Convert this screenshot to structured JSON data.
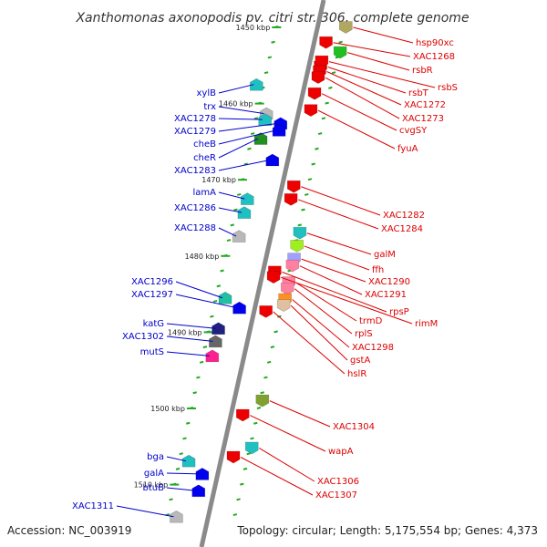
{
  "title": "Xanthomonas axonopodis pv. citri str. 306, complete genome",
  "footer": {
    "accession": "Accession: NC_003919",
    "summary": "Topology: circular; Length: 5,175,554 bp; Genes: 4,373"
  },
  "scale": [
    {
      "label": "1450 kbp",
      "kb": 1450
    },
    {
      "label": "1460 kbp",
      "kb": 1460
    },
    {
      "label": "1470 kbp",
      "kb": 1470
    },
    {
      "label": "1480 kbp",
      "kb": 1480
    },
    {
      "label": "1490 kbp",
      "kb": 1490
    },
    {
      "label": "1500 kbp",
      "kb": 1500
    },
    {
      "label": "1510 kbp",
      "kb": 1510
    }
  ],
  "genes_left": [
    {
      "name": "xylB",
      "kb": 1457.5,
      "ring": 2,
      "color": "#20c0c0",
      "dir": "forward"
    },
    {
      "name": "trx",
      "kb": 1461.3,
      "ring": 1,
      "color": "#b8b8b8",
      "dir": "forward"
    },
    {
      "name": "XAC1278",
      "kb": 1462.1,
      "ring": 1,
      "color": "#20c0c0",
      "dir": "forward"
    },
    {
      "name": "XAC1279",
      "kb": 1462.6,
      "ring": 0,
      "color": "#0000ee",
      "dir": "forward"
    },
    {
      "name": "cheB",
      "kb": 1463.5,
      "ring": 0,
      "color": "#0000ee",
      "dir": "forward"
    },
    {
      "name": "cheR",
      "kb": 1464.6,
      "ring": 1,
      "color": "#209020",
      "dir": "forward"
    },
    {
      "name": "XAC1283",
      "kb": 1467.4,
      "ring": 0,
      "color": "#0000ee",
      "dir": "forward"
    },
    {
      "name": "lamA",
      "kb": 1472.5,
      "ring": 1,
      "color": "#20c0c0",
      "dir": "forward"
    },
    {
      "name": "XAC1286",
      "kb": 1474.3,
      "ring": 1,
      "color": "#20c0c0",
      "dir": "forward"
    },
    {
      "name": "XAC1288",
      "kb": 1477.4,
      "ring": 1,
      "color": "#b8b8b8",
      "dir": "forward"
    },
    {
      "name": "XAC1296",
      "kb": 1485.5,
      "ring": 1,
      "color": "#20c0a0",
      "dir": "forward"
    },
    {
      "name": "XAC1297",
      "kb": 1486.8,
      "ring": 0,
      "color": "#0000ee",
      "dir": "forward"
    },
    {
      "name": "katG",
      "kb": 1489.5,
      "ring": 1,
      "color": "#202080",
      "dir": "forward"
    },
    {
      "name": "XAC1302",
      "kb": 1491.2,
      "ring": 1,
      "color": "#666666",
      "dir": "forward"
    },
    {
      "name": "mutS",
      "kb": 1493.1,
      "ring": 1,
      "color": "#ff2090",
      "dir": "forward"
    },
    {
      "name": "bga",
      "kb": 1506.9,
      "ring": 1,
      "color": "#20c0c0",
      "dir": "forward"
    },
    {
      "name": "galA",
      "kb": 1508.6,
      "ring": 0,
      "color": "#0000ee",
      "dir": "forward"
    },
    {
      "name": "btuB",
      "kb": 1510.8,
      "ring": 0,
      "color": "#0000ee",
      "dir": "forward"
    },
    {
      "name": "XAC1311",
      "kb": 1514.2,
      "ring": 1,
      "color": "#b8b8b8",
      "dir": "forward"
    }
  ],
  "genes_right": [
    {
      "name": "hsp90xc",
      "kb": 1450.0,
      "ring": 1,
      "color": "#b0a860",
      "dir": "reverse"
    },
    {
      "name": "XAC1268",
      "kb": 1452.0,
      "ring": 0,
      "color": "#ee0000",
      "dir": "reverse"
    },
    {
      "name": "rsbR",
      "kb": 1453.3,
      "ring": 1,
      "color": "#20c020",
      "dir": "reverse"
    },
    {
      "name": "rsbT",
      "kb": 1455.2,
      "ring": 0,
      "color": "#ee0000",
      "dir": "reverse"
    },
    {
      "name": "rsbS",
      "kb": 1454.5,
      "ring": 0,
      "color": "#ee0000",
      "dir": "reverse"
    },
    {
      "name": "XAC1272",
      "kb": 1455.8,
      "ring": 0,
      "color": "#ee0000",
      "dir": "reverse"
    },
    {
      "name": "XAC1273",
      "kb": 1456.6,
      "ring": 0,
      "color": "#ee0000",
      "dir": "reverse"
    },
    {
      "name": "cvgSY",
      "kb": 1458.7,
      "ring": 0,
      "color": "#ee0000",
      "dir": "reverse"
    },
    {
      "name": "fyuA",
      "kb": 1460.9,
      "ring": 0,
      "color": "#ee0000",
      "dir": "reverse"
    },
    {
      "name": "XAC1282",
      "kb": 1470.9,
      "ring": 0,
      "color": "#ee0000",
      "dir": "reverse"
    },
    {
      "name": "XAC1284",
      "kb": 1472.6,
      "ring": 0,
      "color": "#ee0000",
      "dir": "reverse"
    },
    {
      "name": "galM",
      "kb": 1477.0,
      "ring": 1,
      "color": "#20c0c0",
      "dir": "reverse"
    },
    {
      "name": "ffh",
      "kb": 1478.7,
      "ring": 1,
      "color": "#a0ee20",
      "dir": "reverse"
    },
    {
      "name": "XAC1290",
      "kb": 1480.4,
      "ring": 1,
      "color": "#a0a0ff",
      "dir": "reverse"
    },
    {
      "name": "XAC1291",
      "kb": 1481.3,
      "ring": 1,
      "color": "#ff80a0",
      "dir": "reverse"
    },
    {
      "name": "rpsP",
      "kb": 1482.1,
      "ring": 0,
      "color": "#ee0000",
      "dir": "reverse"
    },
    {
      "name": "rimM",
      "kb": 1482.8,
      "ring": 0,
      "color": "#ee0000",
      "dir": "reverse"
    },
    {
      "name": "trmD",
      "kb": 1483.5,
      "ring": 1,
      "color": "#ff80a0",
      "dir": "reverse"
    },
    {
      "name": "rplS",
      "kb": 1484.3,
      "ring": 1,
      "color": "#ff80a0",
      "dir": "reverse"
    },
    {
      "name": "XAC1298",
      "kb": 1485.7,
      "ring": 1,
      "color": "#ff9020",
      "dir": "reverse"
    },
    {
      "name": "gstA",
      "kb": 1486.5,
      "ring": 1,
      "color": "#e0c0a0",
      "dir": "reverse"
    },
    {
      "name": "hslR",
      "kb": 1487.3,
      "ring": 0,
      "color": "#ee0000",
      "dir": "reverse"
    },
    {
      "name": "XAC1304",
      "kb": 1499.0,
      "ring": 1,
      "color": "#80a030",
      "dir": "reverse"
    },
    {
      "name": "wapA",
      "kb": 1500.9,
      "ring": 0,
      "color": "#ee0000",
      "dir": "reverse"
    },
    {
      "name": "XAC1306",
      "kb": 1505.2,
      "ring": 1,
      "color": "#20c0c0",
      "dir": "reverse"
    },
    {
      "name": "XAC1307",
      "kb": 1506.4,
      "ring": 0,
      "color": "#ee0000",
      "dir": "reverse"
    }
  ],
  "label_colors": {
    "left": "#0000cc",
    "right": "#dd0000",
    "tick": "#22aa22"
  }
}
